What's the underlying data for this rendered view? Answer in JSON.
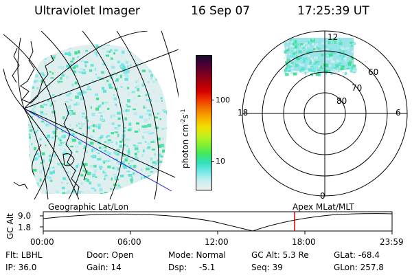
{
  "header": {
    "instrument": "Ultraviolet Imager",
    "date": "16 Sep 07",
    "time": "17:25:39 UT"
  },
  "colorbar": {
    "unit_label": "photon cm",
    "unit_exp1": "-2",
    "unit_mid": "s",
    "unit_exp2": "-1",
    "ticks": [
      "100",
      "10"
    ],
    "colors": [
      "#1a0a2e",
      "#4a0036",
      "#7a0020",
      "#a8000a",
      "#d40000",
      "#f03a00",
      "#f47a00",
      "#f8b000",
      "#f0e000",
      "#c0f020",
      "#80f030",
      "#40e860",
      "#30e0c0",
      "#78e8e8",
      "#c8eef0",
      "#eeeeee"
    ]
  },
  "polar": {
    "labels": {
      "top": "12",
      "bottom": "0",
      "left": "18",
      "right": "6"
    },
    "lat_labels": [
      "60",
      "70",
      "80"
    ]
  },
  "timeline": {
    "left_title": "Geographic Lat/Lon",
    "right_title": "Apex MLat/MLT",
    "ylabel": "GC Alt",
    "y_top": "9.0",
    "y_bottom": "1.8",
    "x_ticks": [
      "00:00",
      "06:00",
      "12:00",
      "18:00",
      "23:59"
    ]
  },
  "info": {
    "filter": "Flt: LBHL",
    "ip": "IP: 36.0",
    "door": "Door: Open",
    "gain": "Gain: 14",
    "mode": "Mode: Normal",
    "dsp": "Dsp:",
    "dsp_value": "-5.1",
    "gc_alt": "GC Alt: 5.3 Re",
    "seq": "Seq: 39",
    "glat": "GLat: -68.4",
    "glon": "GLon: 257.8"
  },
  "colors": {
    "aurora_cyan": "#7ee8e8",
    "aurora_green": "#40e090",
    "timeline_marker": "#d00000",
    "orbit_line": "#1c1cd0"
  }
}
